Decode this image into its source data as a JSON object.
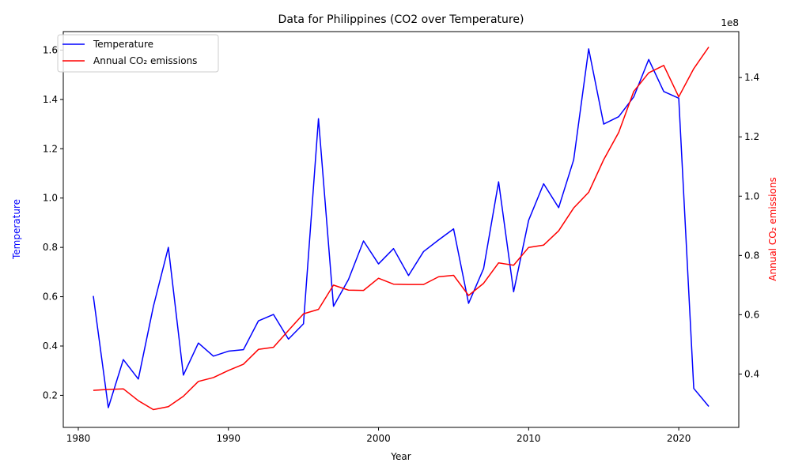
{
  "chart_data": {
    "type": "line",
    "title": "Data for Philippines (CO2 over Temperature)",
    "xlabel": "Year",
    "ylabel_left": "Temperature",
    "ylabel_right": "Annual CO₂ emissions",
    "right_axis_offset_label": "1e8",
    "xlim": [
      1979.0,
      2024.0
    ],
    "ylim_left": [
      0.07,
      1.675
    ],
    "ylim_right": [
      22000000,
      155500000
    ],
    "x_ticks": [
      1980,
      1990,
      2000,
      2010,
      2020
    ],
    "x_tick_labels": [
      "1980",
      "1990",
      "2000",
      "2010",
      "2020"
    ],
    "y_ticks_left": [
      0.2,
      0.4,
      0.6,
      0.8,
      1.0,
      1.2,
      1.4,
      1.6
    ],
    "y_tick_labels_left": [
      "0.2",
      "0.4",
      "0.6",
      "0.8",
      "1.0",
      "1.2",
      "1.4",
      "1.6"
    ],
    "y_ticks_right": [
      40000000,
      60000000,
      80000000,
      100000000,
      120000000,
      140000000
    ],
    "y_tick_labels_right": [
      "0.4",
      "0.6",
      "0.8",
      "1.0",
      "1.2",
      "1.4"
    ],
    "legend_position": "top-left",
    "grid": false,
    "x": [
      1981,
      1982,
      1983,
      1984,
      1985,
      1986,
      1987,
      1988,
      1989,
      1990,
      1991,
      1992,
      1993,
      1994,
      1995,
      1996,
      1997,
      1998,
      1999,
      2000,
      2001,
      2002,
      2003,
      2004,
      2005,
      2006,
      2007,
      2008,
      2009,
      2010,
      2011,
      2012,
      2013,
      2014,
      2015,
      2016,
      2017,
      2018,
      2019,
      2020,
      2021,
      2022
    ],
    "series": [
      {
        "name": "Temperature",
        "axis": "left",
        "color": "#0000ff",
        "values": [
          0.603,
          0.15,
          0.345,
          0.266,
          0.56,
          0.8,
          0.282,
          0.412,
          0.359,
          0.379,
          0.385,
          0.502,
          0.528,
          0.428,
          0.49,
          1.322,
          0.561,
          0.67,
          0.826,
          0.733,
          0.795,
          0.686,
          0.783,
          0.83,
          0.875,
          0.573,
          0.714,
          1.066,
          0.62,
          0.91,
          1.058,
          0.961,
          1.155,
          1.605,
          1.3,
          1.33,
          1.41,
          1.562,
          1.432,
          1.405,
          0.228,
          0.155
        ]
      },
      {
        "name": "Annual CO₂ emissions",
        "axis": "right",
        "color": "#ff0000",
        "values": [
          34500000,
          34800000,
          35000000,
          31000000,
          28000000,
          29000000,
          32500000,
          37500000,
          38800000,
          41200000,
          43300000,
          48300000,
          49000000,
          54700000,
          60300000,
          61800000,
          70000000,
          68300000,
          68200000,
          72300000,
          70300000,
          70200000,
          70200000,
          72800000,
          73300000,
          66500000,
          70600000,
          77500000,
          76700000,
          82700000,
          83500000,
          88300000,
          96000000,
          101300000,
          112300000,
          121500000,
          135300000,
          141600000,
          144100000,
          133500000,
          143000000,
          150300000
        ]
      }
    ]
  }
}
